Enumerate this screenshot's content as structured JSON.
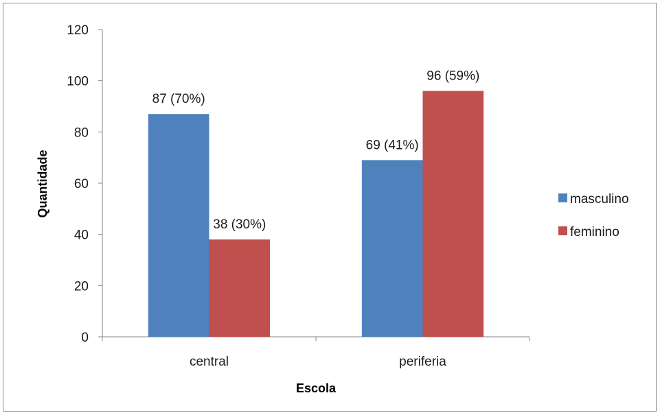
{
  "chart_data": {
    "type": "bar",
    "categories": [
      "central",
      "periferia"
    ],
    "series": [
      {
        "name": "masculino",
        "values": [
          87,
          69
        ],
        "labels": [
          "87 (70%)",
          "69 (41%)"
        ],
        "color": "#4F81BD"
      },
      {
        "name": "feminino",
        "values": [
          38,
          96
        ],
        "labels": [
          "38 (30%)",
          "96 (59%)"
        ],
        "color": "#C0504D"
      }
    ],
    "xlabel": "Escola",
    "ylabel": "Quantidade",
    "ylim": [
      0,
      120
    ],
    "yticks": [
      "0",
      "20",
      "40",
      "60",
      "80",
      "100",
      "120"
    ],
    "grid": false,
    "legend_position": "right"
  }
}
